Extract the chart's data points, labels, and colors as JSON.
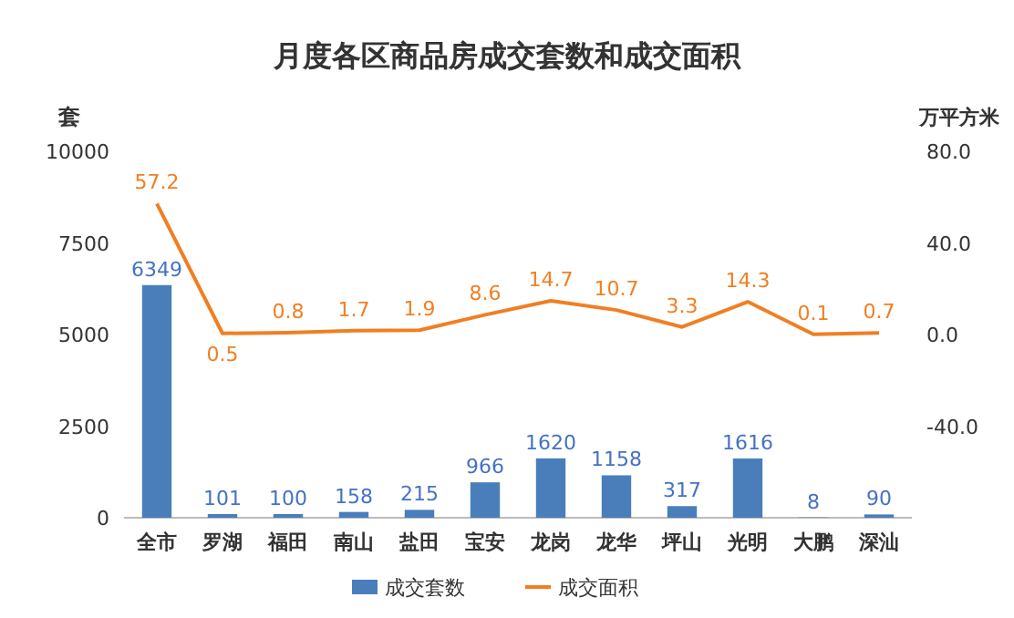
{
  "chart_data": {
    "type": "bar",
    "title": "月度各区商品房成交套数和成交面积",
    "ylabel": "套",
    "y2label": "万平方米",
    "categories": [
      "全市",
      "罗湖",
      "福田",
      "南山",
      "盐田",
      "宝安",
      "龙岗",
      "龙华",
      "坪山",
      "光明",
      "大鹏",
      "深汕"
    ],
    "series": [
      {
        "name": "成交套数",
        "color": "#4a7ebb",
        "values": [
          6349,
          101,
          100,
          158,
          215,
          966,
          1620,
          1158,
          317,
          1616,
          8,
          90
        ]
      },
      {
        "name": "成交面积",
        "type": "line",
        "axis": "y2",
        "color": "#f07f22",
        "values": [
          57.2,
          0.5,
          0.8,
          1.7,
          1.9,
          8.6,
          14.7,
          10.7,
          3.3,
          14.3,
          0.1,
          0.7
        ]
      }
    ],
    "ylim": [
      0,
      10000
    ],
    "yticks": [
      0,
      2500,
      5000,
      7500,
      10000
    ],
    "y2lim": [
      -80,
      80
    ],
    "y2ticks": [
      {
        "value": -40,
        "label": "-40.0"
      },
      {
        "value": 0,
        "label": "0.0"
      },
      {
        "value": 40,
        "label": "40.0"
      },
      {
        "value": 80,
        "label": "80.0"
      }
    ],
    "data_labels": true,
    "grid": false,
    "legend": "bottom",
    "marker": "none",
    "line_style": "solid"
  }
}
